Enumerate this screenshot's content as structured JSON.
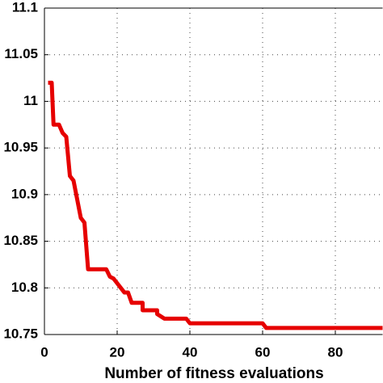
{
  "chart_data": {
    "type": "line",
    "x_label": "Number of fitness evaluations",
    "x": [
      1,
      2,
      2.5,
      4,
      5,
      6,
      7,
      8,
      9,
      10,
      11,
      12,
      17,
      18,
      19,
      20,
      21,
      22,
      23,
      24,
      27,
      27,
      31,
      31,
      33,
      39,
      40,
      60,
      61,
      93
    ],
    "series": [
      {
        "color": "#e60000",
        "values": [
          11.02,
          11.02,
          10.975,
          10.975,
          10.966,
          10.962,
          10.92,
          10.915,
          10.895,
          10.875,
          10.87,
          10.82,
          10.82,
          10.812,
          10.81,
          10.805,
          10.8,
          10.795,
          10.795,
          10.784,
          10.784,
          10.776,
          10.776,
          10.772,
          10.767,
          10.767,
          10.762,
          10.762,
          10.757,
          10.757
        ]
      }
    ],
    "xlim": [
      0,
      93
    ],
    "ylim": [
      10.75,
      11.1
    ],
    "xticks": [
      0,
      20,
      40,
      60,
      80
    ],
    "yticks": [
      10.75,
      10.8,
      10.85,
      10.9,
      10.95,
      11,
      11.05,
      11.1
    ],
    "grid": true
  }
}
